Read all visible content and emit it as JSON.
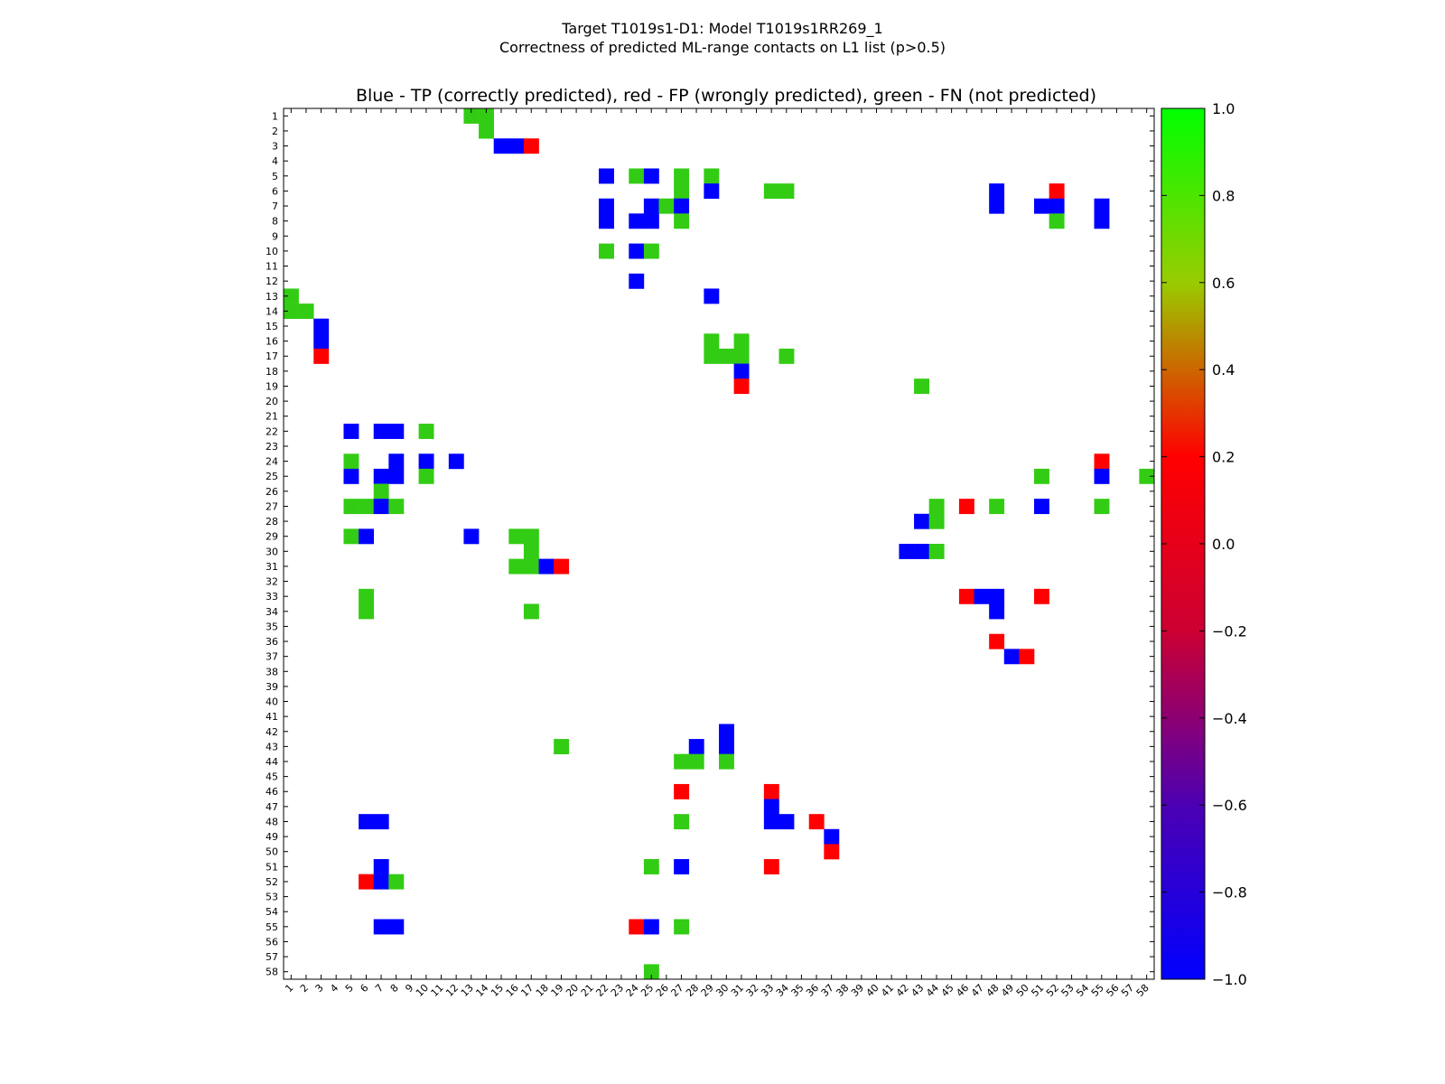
{
  "chart_data": {
    "type": "heatmap",
    "suptitle": "Target T1019s1-D1: Model T1019s1RR269_1",
    "subtitle": "Correctness of predicted ML-range contacts on L1 list (p>0.5)",
    "title": "Blue - TP (correctly predicted), red - FP (wrongly predicted), green - FN (not predicted)",
    "n": 58,
    "x_ticks": [
      "1",
      "2",
      "3",
      "4",
      "5",
      "6",
      "7",
      "8",
      "9",
      "10",
      "11",
      "12",
      "13",
      "14",
      "15",
      "16",
      "17",
      "18",
      "19",
      "20",
      "21",
      "22",
      "23",
      "24",
      "25",
      "26",
      "27",
      "28",
      "29",
      "30",
      "31",
      "32",
      "33",
      "34",
      "35",
      "36",
      "37",
      "38",
      "39",
      "40",
      "41",
      "42",
      "43",
      "44",
      "45",
      "46",
      "47",
      "48",
      "49",
      "50",
      "51",
      "52",
      "53",
      "54",
      "55",
      "56",
      "57",
      "58"
    ],
    "y_ticks": [
      "1",
      "2",
      "3",
      "4",
      "5",
      "6",
      "7",
      "8",
      "9",
      "10",
      "11",
      "12",
      "13",
      "14",
      "15",
      "16",
      "17",
      "18",
      "19",
      "20",
      "21",
      "22",
      "23",
      "24",
      "25",
      "26",
      "27",
      "28",
      "29",
      "30",
      "31",
      "32",
      "33",
      "34",
      "35",
      "36",
      "37",
      "38",
      "39",
      "40",
      "41",
      "42",
      "43",
      "44",
      "45",
      "46",
      "47",
      "48",
      "49",
      "50",
      "51",
      "52",
      "53",
      "54",
      "55",
      "56",
      "57",
      "58"
    ],
    "value_legend": {
      "TP": -1,
      "FP": 0,
      "FN": 0.8
    },
    "colors": {
      "TP": "#0000ff",
      "FP": "#ff0000",
      "FN": "#33cc14"
    },
    "colorbar": {
      "range": [
        -1.0,
        1.0
      ],
      "ticks": [
        "1.0",
        "0.8",
        "0.6",
        "0.4",
        "0.2",
        "0.0",
        "−0.2",
        "−0.4",
        "−0.6",
        "−0.8",
        "−1.0"
      ],
      "tick_values": [
        1.0,
        0.8,
        0.6,
        0.4,
        0.2,
        0.0,
        -0.2,
        -0.4,
        -0.6,
        -0.8,
        -1.0
      ],
      "gradient": [
        "#0000ff",
        "#4c00b2",
        "#cc0033",
        "#ff0000",
        "#99cc00",
        "#00ff00"
      ]
    },
    "cells": [
      [
        1,
        13,
        "FN"
      ],
      [
        1,
        14,
        "FN"
      ],
      [
        2,
        14,
        "FN"
      ],
      [
        3,
        15,
        "TP"
      ],
      [
        3,
        16,
        "TP"
      ],
      [
        3,
        17,
        "FP"
      ],
      [
        5,
        22,
        "TP"
      ],
      [
        5,
        24,
        "FN"
      ],
      [
        5,
        25,
        "TP"
      ],
      [
        5,
        27,
        "FN"
      ],
      [
        5,
        29,
        "FN"
      ],
      [
        6,
        27,
        "FN"
      ],
      [
        6,
        29,
        "TP"
      ],
      [
        6,
        33,
        "FN"
      ],
      [
        6,
        34,
        "FN"
      ],
      [
        6,
        48,
        "TP"
      ],
      [
        6,
        52,
        "FP"
      ],
      [
        7,
        22,
        "TP"
      ],
      [
        7,
        25,
        "TP"
      ],
      [
        7,
        26,
        "FN"
      ],
      [
        7,
        27,
        "TP"
      ],
      [
        7,
        48,
        "TP"
      ],
      [
        7,
        51,
        "TP"
      ],
      [
        7,
        52,
        "TP"
      ],
      [
        7,
        55,
        "TP"
      ],
      [
        8,
        22,
        "TP"
      ],
      [
        8,
        24,
        "TP"
      ],
      [
        8,
        25,
        "TP"
      ],
      [
        8,
        27,
        "FN"
      ],
      [
        8,
        52,
        "FN"
      ],
      [
        8,
        55,
        "TP"
      ],
      [
        10,
        22,
        "FN"
      ],
      [
        10,
        24,
        "TP"
      ],
      [
        10,
        25,
        "FN"
      ],
      [
        12,
        24,
        "TP"
      ],
      [
        13,
        29,
        "TP"
      ],
      [
        13,
        1,
        "FN"
      ],
      [
        14,
        1,
        "FN"
      ],
      [
        14,
        2,
        "FN"
      ],
      [
        15,
        3,
        "TP"
      ],
      [
        16,
        3,
        "TP"
      ],
      [
        16,
        29,
        "FN"
      ],
      [
        16,
        31,
        "FN"
      ],
      [
        17,
        3,
        "FP"
      ],
      [
        17,
        29,
        "FN"
      ],
      [
        17,
        30,
        "FN"
      ],
      [
        17,
        31,
        "FN"
      ],
      [
        17,
        34,
        "FN"
      ],
      [
        18,
        31,
        "TP"
      ],
      [
        19,
        31,
        "FP"
      ],
      [
        19,
        43,
        "FN"
      ],
      [
        22,
        5,
        "TP"
      ],
      [
        22,
        7,
        "TP"
      ],
      [
        22,
        8,
        "TP"
      ],
      [
        22,
        10,
        "FN"
      ],
      [
        24,
        5,
        "FN"
      ],
      [
        24,
        8,
        "TP"
      ],
      [
        24,
        10,
        "TP"
      ],
      [
        24,
        12,
        "TP"
      ],
      [
        24,
        55,
        "FP"
      ],
      [
        25,
        5,
        "TP"
      ],
      [
        25,
        7,
        "TP"
      ],
      [
        25,
        8,
        "TP"
      ],
      [
        25,
        10,
        "FN"
      ],
      [
        25,
        51,
        "FN"
      ],
      [
        25,
        55,
        "TP"
      ],
      [
        25,
        58,
        "FN"
      ],
      [
        26,
        7,
        "FN"
      ],
      [
        27,
        5,
        "FN"
      ],
      [
        27,
        6,
        "FN"
      ],
      [
        27,
        7,
        "TP"
      ],
      [
        27,
        8,
        "FN"
      ],
      [
        27,
        44,
        "FN"
      ],
      [
        27,
        46,
        "FP"
      ],
      [
        27,
        48,
        "FN"
      ],
      [
        27,
        51,
        "TP"
      ],
      [
        27,
        55,
        "FN"
      ],
      [
        28,
        43,
        "TP"
      ],
      [
        28,
        44,
        "FN"
      ],
      [
        29,
        5,
        "FN"
      ],
      [
        29,
        6,
        "TP"
      ],
      [
        29,
        13,
        "TP"
      ],
      [
        29,
        16,
        "FN"
      ],
      [
        29,
        17,
        "FN"
      ],
      [
        30,
        17,
        "FN"
      ],
      [
        30,
        42,
        "TP"
      ],
      [
        30,
        43,
        "TP"
      ],
      [
        30,
        44,
        "FN"
      ],
      [
        31,
        16,
        "FN"
      ],
      [
        31,
        17,
        "FN"
      ],
      [
        31,
        18,
        "TP"
      ],
      [
        31,
        19,
        "FP"
      ],
      [
        33,
        6,
        "FN"
      ],
      [
        33,
        46,
        "FP"
      ],
      [
        33,
        47,
        "TP"
      ],
      [
        33,
        48,
        "TP"
      ],
      [
        33,
        51,
        "FP"
      ],
      [
        34,
        6,
        "FN"
      ],
      [
        34,
        17,
        "FN"
      ],
      [
        34,
        48,
        "TP"
      ],
      [
        36,
        48,
        "FP"
      ],
      [
        37,
        49,
        "TP"
      ],
      [
        37,
        50,
        "FP"
      ],
      [
        42,
        30,
        "TP"
      ],
      [
        43,
        19,
        "FN"
      ],
      [
        43,
        28,
        "TP"
      ],
      [
        43,
        30,
        "TP"
      ],
      [
        44,
        27,
        "FN"
      ],
      [
        44,
        28,
        "FN"
      ],
      [
        44,
        30,
        "FN"
      ],
      [
        46,
        27,
        "FP"
      ],
      [
        46,
        33,
        "FP"
      ],
      [
        47,
        33,
        "TP"
      ],
      [
        48,
        6,
        "TP"
      ],
      [
        48,
        7,
        "TP"
      ],
      [
        48,
        27,
        "FN"
      ],
      [
        48,
        33,
        "TP"
      ],
      [
        48,
        34,
        "TP"
      ],
      [
        48,
        36,
        "FP"
      ],
      [
        49,
        37,
        "TP"
      ],
      [
        50,
        37,
        "FP"
      ],
      [
        51,
        7,
        "TP"
      ],
      [
        51,
        25,
        "FN"
      ],
      [
        51,
        27,
        "TP"
      ],
      [
        51,
        33,
        "FP"
      ],
      [
        52,
        6,
        "FP"
      ],
      [
        52,
        7,
        "TP"
      ],
      [
        52,
        8,
        "FN"
      ],
      [
        55,
        7,
        "TP"
      ],
      [
        55,
        8,
        "TP"
      ],
      [
        55,
        24,
        "FP"
      ],
      [
        55,
        25,
        "TP"
      ],
      [
        55,
        27,
        "FN"
      ],
      [
        58,
        25,
        "FN"
      ]
    ]
  }
}
